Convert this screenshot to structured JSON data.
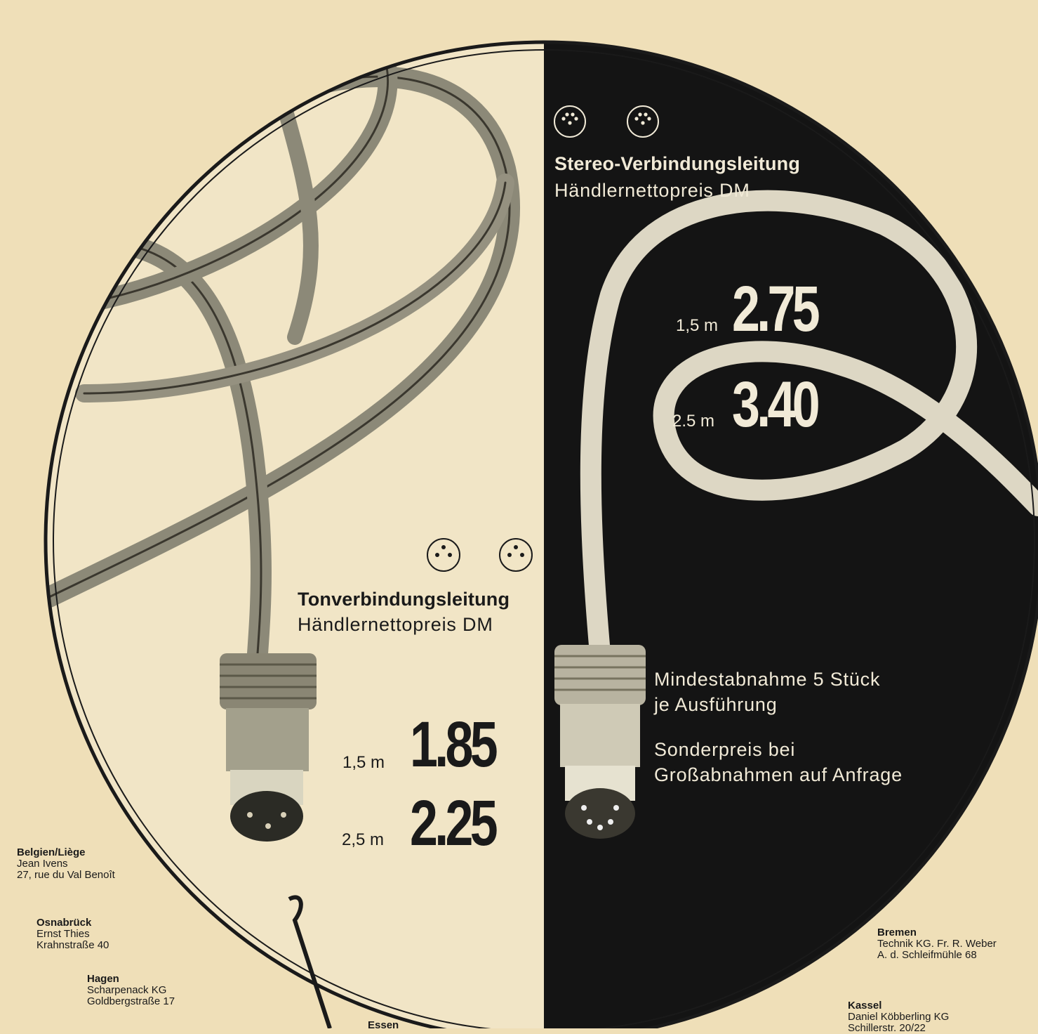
{
  "colors": {
    "paper": "#efdfb8",
    "dark_panel": "#141414",
    "light_text": "#f1ead7",
    "ink": "#1a1a1a"
  },
  "icons": {
    "din_3pin": "din-3-pin-socket-icon",
    "din_5pin": "din-5-pin-socket-icon"
  },
  "stereo": {
    "title": "Stereo-Verbindungsleitung",
    "subtitle": "Händlernettopreis DM",
    "prices": [
      {
        "length": "1,5 m",
        "price": "2.75"
      },
      {
        "length": "2.5 m",
        "price": "3.40"
      }
    ]
  },
  "mono": {
    "title": "Tonverbindungsleitung",
    "subtitle": "Händlernettopreis DM",
    "prices": [
      {
        "length": "1,5 m",
        "price": "1.85"
      },
      {
        "length": "2,5 m",
        "price": "2.25"
      }
    ]
  },
  "notes": {
    "min_order_1": "Mindestabnahme 5 Stück",
    "min_order_2": "je Ausführung",
    "special_1": "Sonderpreis bei",
    "special_2": "Großabnahmen auf Anfrage"
  },
  "dealers": {
    "belgien": {
      "city": "Belgien/Liège",
      "name": "Jean Ivens",
      "street": "27, rue du Val Benoît"
    },
    "osnabrueck": {
      "city": "Osnabrück",
      "name": "Ernst Thies",
      "street": "Krahnstraße 40"
    },
    "hagen": {
      "city": "Hagen",
      "name": "Scharpenack KG",
      "street": "Goldbergstraße 17"
    },
    "essen": {
      "city": "Essen"
    },
    "bremen": {
      "city": "Bremen",
      "name": "Technik KG. Fr. R. Weber",
      "street": "A. d. Schleifmühle 68"
    },
    "kassel": {
      "city": "Kassel",
      "name": "Daniel Köbberling KG",
      "street": "Schillerstr. 20/22"
    }
  }
}
